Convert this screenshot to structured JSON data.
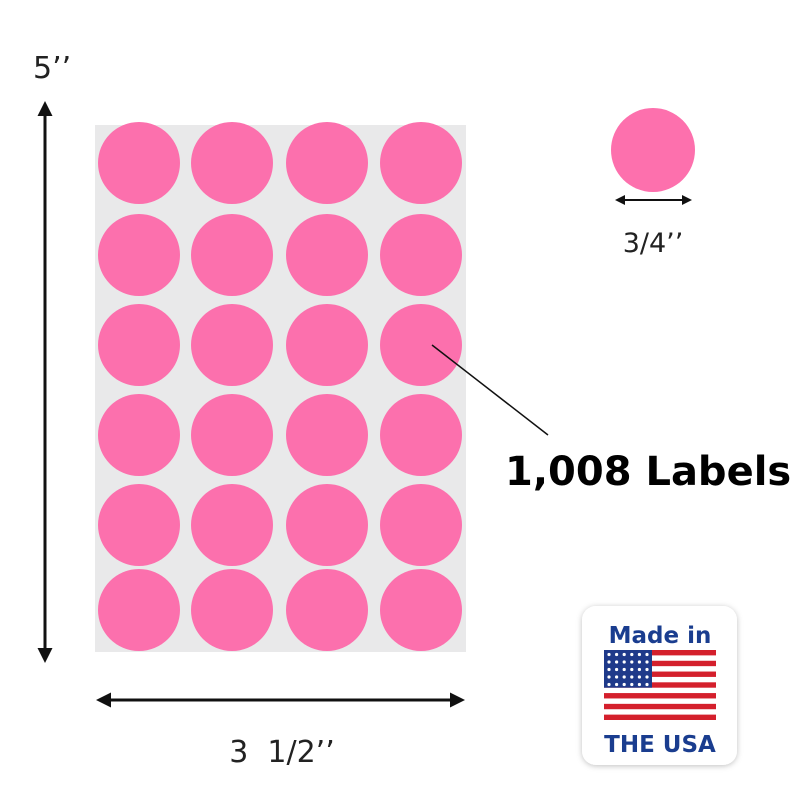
{
  "dimensions": {
    "height": "5’’",
    "label_diameter": "3/4’’",
    "width": "3  1/2’’"
  },
  "callout": "1,008 Labels",
  "badge": {
    "top": "Made in",
    "bottom": "THE USA"
  }
}
